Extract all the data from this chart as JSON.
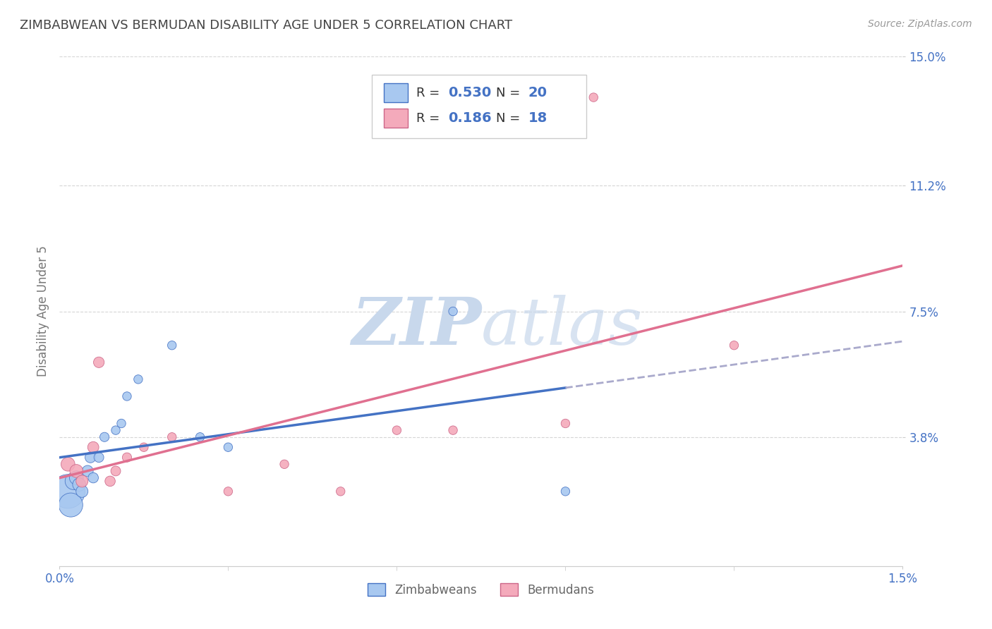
{
  "title": "ZIMBABWEAN VS BERMUDAN DISABILITY AGE UNDER 5 CORRELATION CHART",
  "source": "Source: ZipAtlas.com",
  "ylabel": "Disability Age Under 5",
  "x_min": 0.0,
  "x_max": 0.015,
  "y_min": 0.0,
  "y_max": 0.15,
  "legend_zimbabwe": "Zimbabweans",
  "legend_bermuda": "Bermudans",
  "R_zimbabwe": 0.53,
  "N_zimbabwe": 20,
  "R_bermuda": 0.186,
  "N_bermuda": 18,
  "color_zimbabwe": "#A8C8F0",
  "color_bermuda": "#F4AABB",
  "color_line_zimbabwe": "#4472C4",
  "color_line_bermuda": "#E07090",
  "color_dashed": "#AAAACC",
  "color_text_blue": "#4472C4",
  "background_color": "#FFFFFF",
  "grid_color": "#CCCCCC",
  "watermark_color": "#D8E8F8",
  "zimbabwe_x": [
    0.00015,
    0.0002,
    0.00025,
    0.0003,
    0.00035,
    0.0004,
    0.0005,
    0.00055,
    0.0006,
    0.0007,
    0.0008,
    0.001,
    0.0011,
    0.0012,
    0.0014,
    0.002,
    0.0025,
    0.003,
    0.007,
    0.009
  ],
  "zimbabwe_y": [
    0.022,
    0.018,
    0.025,
    0.026,
    0.024,
    0.022,
    0.028,
    0.032,
    0.026,
    0.032,
    0.038,
    0.04,
    0.042,
    0.05,
    0.055,
    0.065,
    0.038,
    0.035,
    0.075,
    0.022
  ],
  "bermuda_x": [
    0.00015,
    0.0003,
    0.0004,
    0.0006,
    0.0007,
    0.0009,
    0.001,
    0.0012,
    0.0015,
    0.002,
    0.003,
    0.004,
    0.005,
    0.006,
    0.007,
    0.009,
    0.0095,
    0.012
  ],
  "bermuda_y": [
    0.03,
    0.028,
    0.025,
    0.035,
    0.06,
    0.025,
    0.028,
    0.032,
    0.035,
    0.038,
    0.022,
    0.03,
    0.022,
    0.04,
    0.04,
    0.042,
    0.138,
    0.065
  ],
  "zimbabwe_sizes": [
    1200,
    600,
    300,
    200,
    180,
    150,
    130,
    120,
    110,
    100,
    90,
    80,
    80,
    80,
    80,
    80,
    80,
    80,
    80,
    80
  ],
  "bermuda_sizes": [
    200,
    180,
    150,
    130,
    120,
    110,
    100,
    90,
    80,
    80,
    80,
    80,
    80,
    80,
    80,
    80,
    80,
    80
  ],
  "y_tick_vals": [
    0.038,
    0.075,
    0.112,
    0.15
  ],
  "y_tick_labels": [
    "3.8%",
    "7.5%",
    "11.2%",
    "15.0%"
  ],
  "x_tick_vals": [
    0.0,
    0.015
  ],
  "x_tick_labels": [
    "0.0%",
    "1.5%"
  ]
}
